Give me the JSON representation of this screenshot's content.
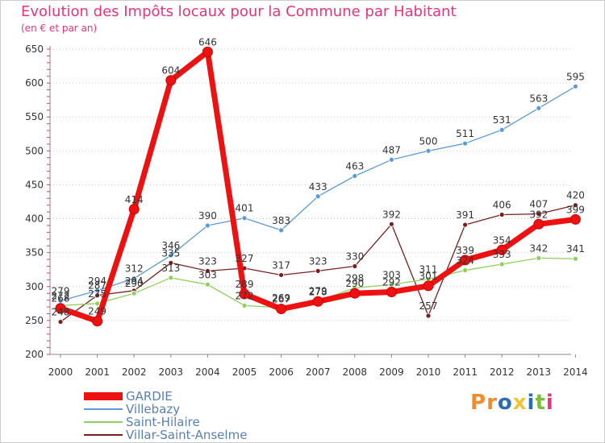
{
  "header": {
    "title": "Evolution des Impôts locaux pour la Commune par Habitant",
    "subtitle": "(en € et par an)"
  },
  "logo": {
    "text": "Proxiti",
    "letter_colors": [
      "#f28c28",
      "#f28c28",
      "#2b6cb0",
      "#f2c230",
      "#2b6cb0",
      "#7cbd3b",
      "#e8337d"
    ]
  },
  "chart_data": {
    "type": "line",
    "x": [
      "2000",
      "2001",
      "2002",
      "2003",
      "2004",
      "2005",
      "2006",
      "2007",
      "2008",
      "2009",
      "2010",
      "2011",
      "2012",
      "2013",
      "2014"
    ],
    "ylim": [
      200,
      650
    ],
    "yticks": [
      "200",
      "250",
      "300",
      "350",
      "400",
      "450",
      "500",
      "550",
      "600",
      "650"
    ],
    "grid": "horizontal dotted",
    "legend_position": "bottom-left",
    "series": [
      {
        "name": "Villebazy",
        "color": "#5b9bd5",
        "style": "thin",
        "values": [
          279,
          294,
          312,
          346,
          390,
          401,
          383,
          433,
          463,
          487,
          500,
          511,
          531,
          563,
          595
        ],
        "labels": [
          "279",
          "294",
          "312",
          "346",
          "390",
          "401",
          "383",
          "433",
          "463",
          "487",
          "500",
          "511",
          "531",
          "563",
          "595"
        ]
      },
      {
        "name": "Villar-Saint-Anselme",
        "color": "#7a1f1f",
        "style": "thin",
        "values": [
          248,
          287,
          294,
          335,
          323,
          327,
          317,
          323,
          330,
          392,
          257,
          391,
          406,
          407,
          420
        ],
        "labels": [
          "248",
          "287",
          "294",
          "335",
          "323",
          "327",
          "317",
          "323",
          "330",
          "392",
          "257",
          "391",
          "406",
          "407",
          "420"
        ]
      },
      {
        "name": "Saint-Hilaire",
        "color": "#8ed05c",
        "style": "thin",
        "values": [
          272,
          275,
          290,
          313,
          303,
          272,
          269,
          279,
          298,
          303,
          311,
          324,
          333,
          342,
          341
        ],
        "labels": [
          "272",
          "275",
          "290",
          "313",
          "303",
          "272",
          "269",
          "279",
          "298",
          "303",
          "311",
          "324",
          "333",
          "342",
          "341"
        ]
      },
      {
        "name": "GARDIE",
        "color": "#ee1111",
        "style": "thick",
        "values": [
          268,
          249,
          414,
          604,
          646,
          289,
          267,
          278,
          290,
          292,
          301,
          339,
          354,
          392,
          399
        ],
        "labels": [
          "268",
          "249",
          "414",
          "604",
          "646",
          "289",
          "267",
          "278",
          "290",
          "292",
          "301",
          "339",
          "354",
          "392",
          "399"
        ]
      }
    ],
    "legend_order": [
      "GARDIE",
      "Villebazy",
      "Saint-Hilaire",
      "Villar-Saint-Anselme"
    ]
  }
}
